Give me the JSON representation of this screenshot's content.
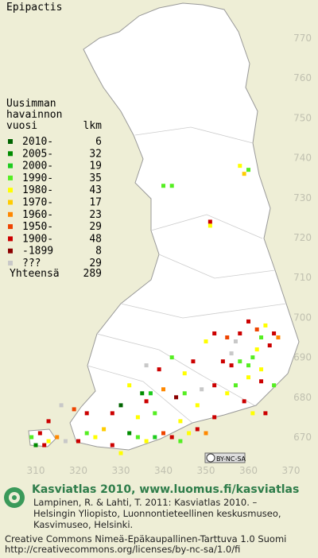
{
  "title": "Epipactis",
  "legend": {
    "header": [
      "Uusimman",
      "havainnon",
      "vuosi"
    ],
    "count_header": "lkm",
    "entries": [
      {
        "label": "2010-",
        "count": 6,
        "color": "#006400"
      },
      {
        "label": "2005-",
        "count": 32,
        "color": "#008c00"
      },
      {
        "label": "2000-",
        "count": 19,
        "color": "#1ecc1e"
      },
      {
        "label": "1990-",
        "count": 35,
        "color": "#55ee22"
      },
      {
        "label": "1980-",
        "count": 43,
        "color": "#ffff00"
      },
      {
        "label": "1970-",
        "count": 17,
        "color": "#ffcc00"
      },
      {
        "label": "1960-",
        "count": 23,
        "color": "#ff8800"
      },
      {
        "label": "1950-",
        "count": 29,
        "color": "#ee4400"
      },
      {
        "label": "1900-",
        "count": 48,
        "color": "#cc0000"
      },
      {
        "label": "-1899",
        "count": 8,
        "color": "#8b0000"
      },
      {
        "label": "???",
        "count": 29,
        "color": "#c8c8c8"
      }
    ],
    "total_label": "Yhteensä",
    "total": 289
  },
  "xticks": [
    310,
    320,
    330,
    340,
    350,
    360,
    370
  ],
  "yticks": [
    770,
    760,
    750,
    740,
    730,
    720,
    710,
    700,
    690,
    680,
    670
  ],
  "xlim": [
    310,
    370
  ],
  "ylim": [
    670,
    770
  ],
  "points": [
    [
      340,
      733,
      3
    ],
    [
      342,
      733,
      3
    ],
    [
      358,
      738,
      4
    ],
    [
      359,
      736,
      5
    ],
    [
      360,
      737,
      3
    ],
    [
      351,
      724,
      8
    ],
    [
      351,
      723,
      4
    ],
    [
      360,
      699,
      8
    ],
    [
      362,
      697,
      7
    ],
    [
      364,
      698,
      4
    ],
    [
      366,
      696,
      8
    ],
    [
      358,
      696,
      8
    ],
    [
      352,
      696,
      8
    ],
    [
      355,
      695,
      7
    ],
    [
      363,
      695,
      3
    ],
    [
      367,
      695,
      6
    ],
    [
      350,
      694,
      4
    ],
    [
      357,
      694,
      10
    ],
    [
      365,
      693,
      8
    ],
    [
      362,
      692,
      4
    ],
    [
      361,
      690,
      3
    ],
    [
      358,
      689,
      3
    ],
    [
      356,
      688,
      8
    ],
    [
      360,
      688,
      3
    ],
    [
      363,
      687,
      4
    ],
    [
      354,
      689,
      8
    ],
    [
      356,
      691,
      10
    ],
    [
      347,
      689,
      8
    ],
    [
      342,
      690,
      3
    ],
    [
      345,
      686,
      4
    ],
    [
      336,
      688,
      10
    ],
    [
      339,
      687,
      8
    ],
    [
      332,
      683,
      4
    ],
    [
      335,
      681,
      1
    ],
    [
      337,
      681,
      2
    ],
    [
      336,
      679,
      8
    ],
    [
      340,
      682,
      6
    ],
    [
      343,
      680,
      9
    ],
    [
      345,
      681,
      3
    ],
    [
      348,
      678,
      4
    ],
    [
      349,
      682,
      10
    ],
    [
      352,
      683,
      8
    ],
    [
      357,
      683,
      3
    ],
    [
      355,
      681,
      4
    ],
    [
      360,
      685,
      4
    ],
    [
      363,
      684,
      8
    ],
    [
      366,
      683,
      3
    ],
    [
      359,
      679,
      8
    ],
    [
      361,
      676,
      4
    ],
    [
      364,
      676,
      8
    ],
    [
      328,
      676,
      8
    ],
    [
      330,
      678,
      0
    ],
    [
      334,
      675,
      4
    ],
    [
      338,
      676,
      3
    ],
    [
      332,
      671,
      1
    ],
    [
      334,
      670,
      3
    ],
    [
      336,
      669,
      4
    ],
    [
      338,
      670,
      2
    ],
    [
      340,
      671,
      7
    ],
    [
      342,
      670,
      8
    ],
    [
      344,
      669,
      3
    ],
    [
      346,
      671,
      4
    ],
    [
      348,
      672,
      8
    ],
    [
      350,
      671,
      6
    ],
    [
      324,
      670,
      4
    ],
    [
      322,
      671,
      3
    ],
    [
      320,
      669,
      8
    ],
    [
      317,
      669,
      10
    ],
    [
      326,
      672,
      5
    ],
    [
      328,
      668,
      8
    ],
    [
      330,
      666,
      4
    ],
    [
      344,
      674,
      4
    ],
    [
      352,
      675,
      8
    ],
    [
      309,
      670,
      3
    ],
    [
      311,
      671,
      8
    ],
    [
      313,
      669,
      4
    ],
    [
      315,
      670,
      6
    ],
    [
      310,
      668,
      1
    ],
    [
      312,
      668,
      8
    ],
    [
      313,
      674,
      8
    ],
    [
      319,
      677,
      7
    ],
    [
      322,
      676,
      8
    ],
    [
      316,
      678,
      10
    ]
  ],
  "license_badge": "BY-NC-SA",
  "footer": {
    "headline": "Kasviatlas 2010, www.luomus.fi/kasviatlas",
    "citation": [
      "Lampinen, R. & Lahti, T. 2011: Kasviatlas 2010. –",
      "Helsingin Yliopisto, Luonnontieteellinen keskusmuseo,",
      "Kasvimuseo, Helsinki."
    ],
    "license": [
      "Creative Commons Nimeä-Epäkaupallinen-Tarttuva 1.0 Suomi",
      "http://creativecommons.org/licenses/by-nc-sa/1.0/fi"
    ]
  }
}
